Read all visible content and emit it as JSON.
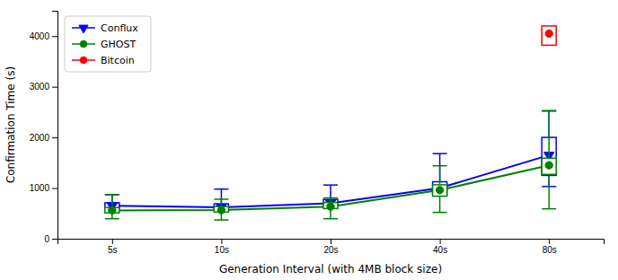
{
  "chart_data": {
    "type": "box",
    "x_label": "Generation Interval (with 4MB block size)",
    "y_label": "Confirmation Time (s)",
    "categories": [
      "5s",
      "10s",
      "20s",
      "40s",
      "80s"
    ],
    "series": [
      {
        "name": "Conflux",
        "color": "#0000ff",
        "marker": "triangle-down",
        "values": [
          650,
          620,
          700,
          1000,
          1650
        ],
        "yerr_lo": [
          80,
          80,
          90,
          150,
          620
        ],
        "yerr_hi": [
          220,
          360,
          360,
          680,
          870
        ],
        "box_lo": [
          600,
          580,
          650,
          875,
          1250
        ],
        "box_hi": [
          710,
          690,
          775,
          1125,
          2000
        ]
      },
      {
        "name": "GHOST",
        "color": "#008000",
        "marker": "circle",
        "values": [
          560,
          565,
          635,
          960,
          1450
        ],
        "yerr_lo": [
          165,
          195,
          240,
          440,
          860
        ],
        "yerr_hi": [
          310,
          215,
          170,
          480,
          1080
        ],
        "box_lo": [
          510,
          525,
          595,
          840,
          1270
        ],
        "box_hi": [
          615,
          635,
          715,
          1065,
          1590
        ]
      },
      {
        "name": "Bitcoin",
        "color": "#ff0000",
        "marker": "circle",
        "values": [
          null,
          null,
          null,
          null,
          4050
        ],
        "yerr_lo": [
          null,
          null,
          null,
          null,
          190
        ],
        "yerr_hi": [
          null,
          null,
          null,
          null,
          130
        ],
        "box_lo": [
          null,
          null,
          null,
          null,
          3820
        ],
        "box_hi": [
          null,
          null,
          null,
          null,
          4200
        ]
      }
    ],
    "ylim": [
      0,
      4500
    ],
    "yticks": [
      0,
      1000,
      2000,
      3000,
      4000
    ],
    "grid": false,
    "legend": "upper left"
  }
}
